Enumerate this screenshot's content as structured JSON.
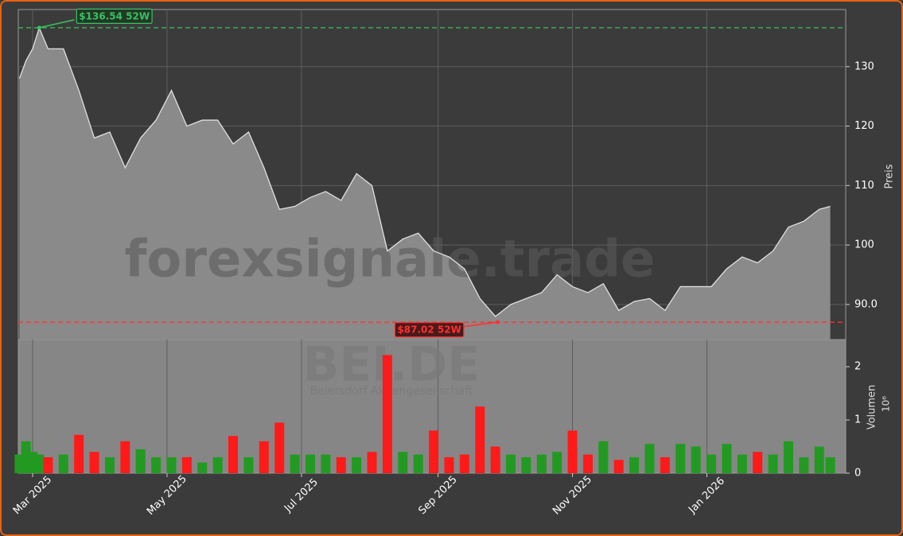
{
  "chart_data": {
    "type": "stock",
    "watermark": "forexsignale.trade",
    "symbol": "BEI.DE",
    "company": "Beiersdorf Aktiengesellschaft",
    "price_label": "Preis",
    "volume_label": "Volumen",
    "volume_offset_label": "10⁶",
    "xlim": [
      -6.5,
      369
    ],
    "xticks": [
      {
        "value": 0,
        "label": "Mar 2025"
      },
      {
        "value": 61,
        "label": "May 2025"
      },
      {
        "value": 122,
        "label": "Jul 2025"
      },
      {
        "value": 184,
        "label": "Sep 2025"
      },
      {
        "value": 245,
        "label": "Nov 2025"
      },
      {
        "value": 306,
        "label": "Jan 2026"
      }
    ],
    "ylim": [
      84.1,
      139.6
    ],
    "yticks": [
      {
        "value": 90,
        "label": "90.0"
      },
      100,
      110,
      120,
      130
    ],
    "y2lim": [
      0,
      2.51
    ],
    "y2ticks": [
      0,
      1,
      2
    ],
    "grid": true,
    "x": [
      -6,
      -3,
      0,
      3,
      7,
      14,
      21,
      28,
      35,
      42,
      49,
      56,
      63,
      70,
      77,
      84,
      91,
      98,
      105,
      112,
      119,
      126,
      133,
      140,
      147,
      154,
      161,
      168,
      175,
      182,
      189,
      196,
      203,
      210,
      217,
      224,
      231,
      238,
      245,
      252,
      259,
      266,
      273,
      280,
      287,
      294,
      301,
      308,
      315,
      322,
      329,
      336,
      343,
      350,
      357,
      362
    ],
    "series": [
      {
        "name": "Preis",
        "color": "#8a8a8a",
        "line_color": "#e0e0e0",
        "values": [
          128,
          131,
          133,
          136.5,
          133,
          133,
          126,
          118,
          119,
          113,
          118,
          121,
          126,
          120,
          121,
          121,
          117,
          119,
          113,
          106,
          106.5,
          108,
          109,
          107.5,
          112,
          110,
          99,
          101,
          102,
          99,
          98,
          96,
          91,
          88,
          90,
          91,
          92,
          95,
          93,
          92,
          93.5,
          89,
          90.5,
          91,
          89,
          93,
          93,
          93,
          96,
          98,
          97,
          99,
          103,
          104,
          106,
          106.5
        ]
      },
      {
        "name": "Volumen",
        "axis": "y2",
        "up_color": "#229a22",
        "down_color": "#ff1a1a",
        "values": [
          0.35,
          0.6,
          0.4,
          0.35,
          0.3,
          0.35,
          0.72,
          0.4,
          0.3,
          0.6,
          0.45,
          0.3,
          0.3,
          0.3,
          0.2,
          0.3,
          0.7,
          0.3,
          0.6,
          0.95,
          0.35,
          0.35,
          0.35,
          0.3,
          0.3,
          0.4,
          2.22,
          0.4,
          0.35,
          0.8,
          0.3,
          0.35,
          1.25,
          0.5,
          0.35,
          0.3,
          0.35,
          0.4,
          0.8,
          0.35,
          0.6,
          0.25,
          0.3,
          0.55,
          0.3,
          0.55,
          0.5,
          0.35,
          0.55,
          0.35,
          0.4,
          0.35,
          0.6,
          0.3,
          0.5,
          0.3
        ]
      }
    ],
    "annotations": [
      {
        "label": "$136.54 52W",
        "value": 136.54,
        "x": 3,
        "color": "#3cc060"
      },
      {
        "label": "$87.02 52W",
        "value": 87.02,
        "x": 211,
        "color": "#ff3030"
      }
    ]
  }
}
